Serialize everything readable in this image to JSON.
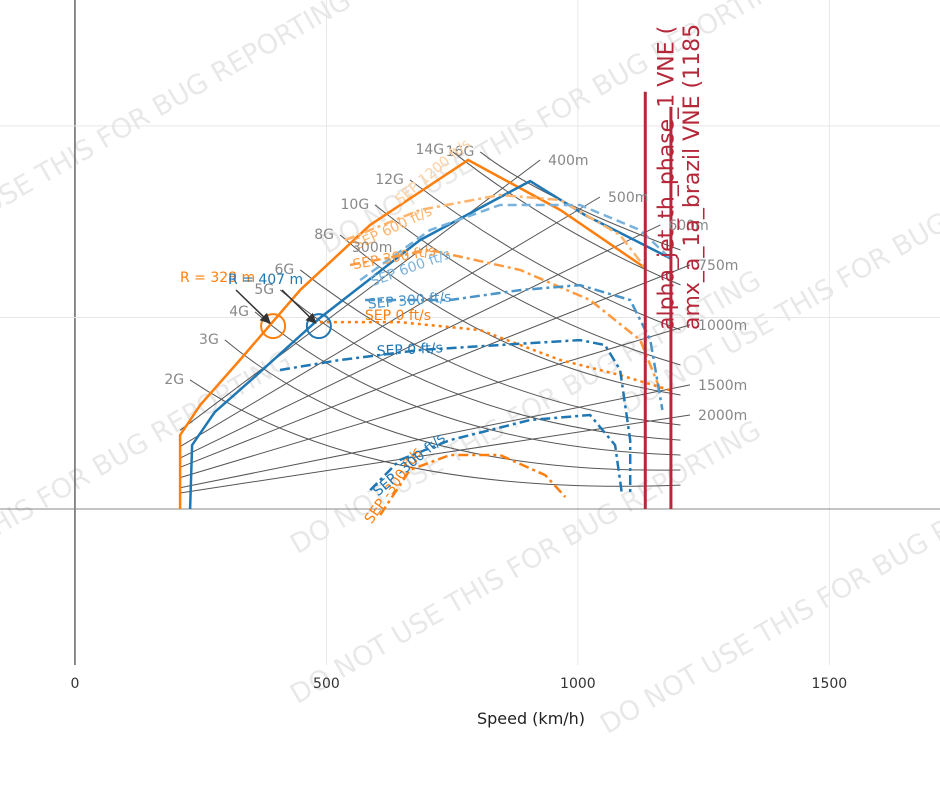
{
  "chart_data": {
    "type": "line",
    "xlabel": "Speed (km/h)",
    "xlim": [
      -149,
      1720
    ],
    "ylim": [
      -8.14,
      26.57
    ],
    "xticks": [
      0,
      500,
      1000,
      1500
    ],
    "yticks": [
      0,
      10,
      20
    ],
    "ytick_labels": false,
    "grid": true,
    "watermark": "DO NOT USE THIS FOR BUG REPORTING",
    "series": [
      {
        "color": "#ff7f0e",
        "dash": "solid",
        "width": 2.5,
        "x": [
          209,
          209,
          249,
          328,
          448,
          587,
          782,
          965,
          1134
        ],
        "values": [
          0,
          3.86,
          5.43,
          7.78,
          11.44,
          14.83,
          18.22,
          15.61,
          12.58
        ]
      },
      {
        "color": "#1f77b4",
        "dash": "solid",
        "width": 2.5,
        "x": [
          229,
          233,
          278,
          368,
          487,
          686,
          905,
          1014,
          1183
        ],
        "values": [
          0,
          3.34,
          5.06,
          7.15,
          9.97,
          14.04,
          17.12,
          15.35,
          13.1
        ]
      },
      {
        "label": "SEP 600 ft/s",
        "color": "#ffb36b",
        "dash": "dashdot",
        "width": 2.5,
        "x": [
          537,
          686,
          845,
          965,
          1084,
          1134
        ],
        "values": [
          14.04,
          15.61,
          16.39,
          16.13,
          14.3,
          12.58
        ]
      },
      {
        "label": "SEP 600 ft/s",
        "color": "#79b3dd",
        "dash": "dash",
        "width": 2.5,
        "x": [
          567,
          706,
          845,
          1004,
          1124,
          1183
        ],
        "values": [
          11.95,
          14.56,
          15.87,
          15.87,
          14.56,
          13.1
        ]
      },
      {
        "label": "SEP 300 ft/s",
        "color": "#ff9a40",
        "dash": "dashdot",
        "width": 2.5,
        "x": [
          547,
          706,
          885,
          1024,
          1124,
          1164
        ],
        "values": [
          12.74,
          13.52,
          12.48,
          10.91,
          8.82,
          6.21
        ]
      },
      {
        "label": "SEP 300 ft/s",
        "color": "#4a94c8",
        "dash": "dashdot",
        "width": 2.5,
        "x": [
          577,
          746,
          885,
          1004,
          1104,
          1144,
          1168
        ],
        "values": [
          10.91,
          10.91,
          11.43,
          11.69,
          10.91,
          8.82,
          5.17
        ]
      },
      {
        "label": "SEP 0 ft/s",
        "color": "#ff7f0e",
        "dash": "dot",
        "width": 2.5,
        "x": [
          487,
          646,
          806,
          965,
          1084,
          1183
        ],
        "values": [
          9.76,
          9.76,
          9.34,
          7.78,
          6.99,
          6.21
        ]
      },
      {
        "label": "SEP 0 ft/s",
        "color": "#1f77b4",
        "dash": "dashdot",
        "width": 2.5,
        "x": [
          408,
          527,
          686,
          845,
          1004,
          1054,
          1084,
          1104,
          1104
        ],
        "values": [
          7.26,
          7.78,
          8.3,
          8.56,
          8.82,
          8.56,
          7.26,
          3.6,
          0.73
        ]
      },
      {
        "label": "SEP -300 ft/s",
        "color": "#ff7f0e",
        "dash": "dashdot",
        "width": 2.5,
        "x": [
          607,
          666,
          746,
          845,
          935,
          975
        ],
        "values": [
          -0.31,
          2.04,
          2.82,
          2.82,
          1.77,
          0.63
        ]
      },
      {
        "label": "SEP -300 ft/s",
        "color": "#1f77b4",
        "dash": "dashdot",
        "width": 2.5,
        "x": [
          587,
          646,
          746,
          905,
          1024,
          1074,
          1088
        ],
        "values": [
          0.99,
          2.56,
          3.6,
          4.65,
          4.91,
          3.34,
          0.73
        ]
      }
    ],
    "radius_lines": [
      {
        "label": "400m",
        "x": [
          209,
          925
        ],
        "values": [
          4.11,
          18.22
        ]
      },
      {
        "label": "500m",
        "x": [
          209,
          1044
        ],
        "values": [
          3.26,
          16.29
        ]
      },
      {
        "label": "600m",
        "x": [
          209,
          1164
        ],
        "values": [
          2.66,
          14.83
        ]
      },
      {
        "label": "750m",
        "x": [
          209,
          1223
        ],
        "values": [
          2.18,
          12.74
        ]
      },
      {
        "label": "1000m",
        "x": [
          209,
          1223
        ],
        "values": [
          1.64,
          9.61
        ]
      },
      {
        "label": "1500m",
        "x": [
          209,
          1223
        ],
        "values": [
          1.11,
          6.48
        ]
      },
      {
        "label": "2000m",
        "x": [
          209,
          1223
        ],
        "values": [
          0.84,
          4.91
        ]
      }
    ],
    "g_lines": [
      {
        "label": "16G",
        "x": [
          806,
          965,
          1204
        ],
        "values": [
          18.64,
          16.14,
          13.52
        ]
      },
      {
        "label": "14G",
        "x": [
          746,
          965,
          1204
        ],
        "values": [
          18.75,
          14.83,
          11.7
        ]
      },
      {
        "label": "12G",
        "x": [
          666,
          925,
          1204
        ],
        "values": [
          17.18,
          12.74,
          9.35
        ]
      },
      {
        "label": "10G",
        "x": [
          597,
          885,
          1204
        ],
        "values": [
          15.87,
          10.91,
          7.52
        ]
      },
      {
        "label": "8G",
        "x": [
          527,
          845,
          1204
        ],
        "values": [
          14.31,
          8.83,
          5.95
        ]
      },
      {
        "label": "6G",
        "x": [
          448,
          806,
          1204
        ],
        "values": [
          12.48,
          6.99,
          4.39
        ]
      },
      {
        "label": "5G",
        "x": [
          408,
          766,
          1204
        ],
        "values": [
          11.44,
          5.95,
          3.6
        ]
      },
      {
        "label": "4G",
        "x": [
          358,
          726,
          1204
        ],
        "values": [
          10.29,
          4.91,
          2.82
        ]
      },
      {
        "label": "3G",
        "x": [
          298,
          686,
          1204
        ],
        "values": [
          8.83,
          3.6,
          2.04
        ]
      },
      {
        "label": "2G",
        "x": [
          229,
          646,
          1204
        ],
        "values": [
          6.74,
          2.3,
          1.25
        ]
      }
    ],
    "vlines": [
      {
        "label": "alpha_jet_th_phase_1 VNE (",
        "color": "#b5283a",
        "x": 1134,
        "top": 21.78
      },
      {
        "label": "amx_a_1a_brazil VNE (1185",
        "color": "#b5283a",
        "x": 1185,
        "top": 21.0
      }
    ],
    "markers": [
      {
        "label": "R = 328 m",
        "color": "#ff7f0e",
        "x": 394,
        "y": 9.55
      },
      {
        "label": "R = 407 m",
        "color": "#1f77b4",
        "x": 485,
        "y": 9.55
      }
    ],
    "annotations": [
      "300m",
      "SEP 1200 ft/s"
    ]
  }
}
